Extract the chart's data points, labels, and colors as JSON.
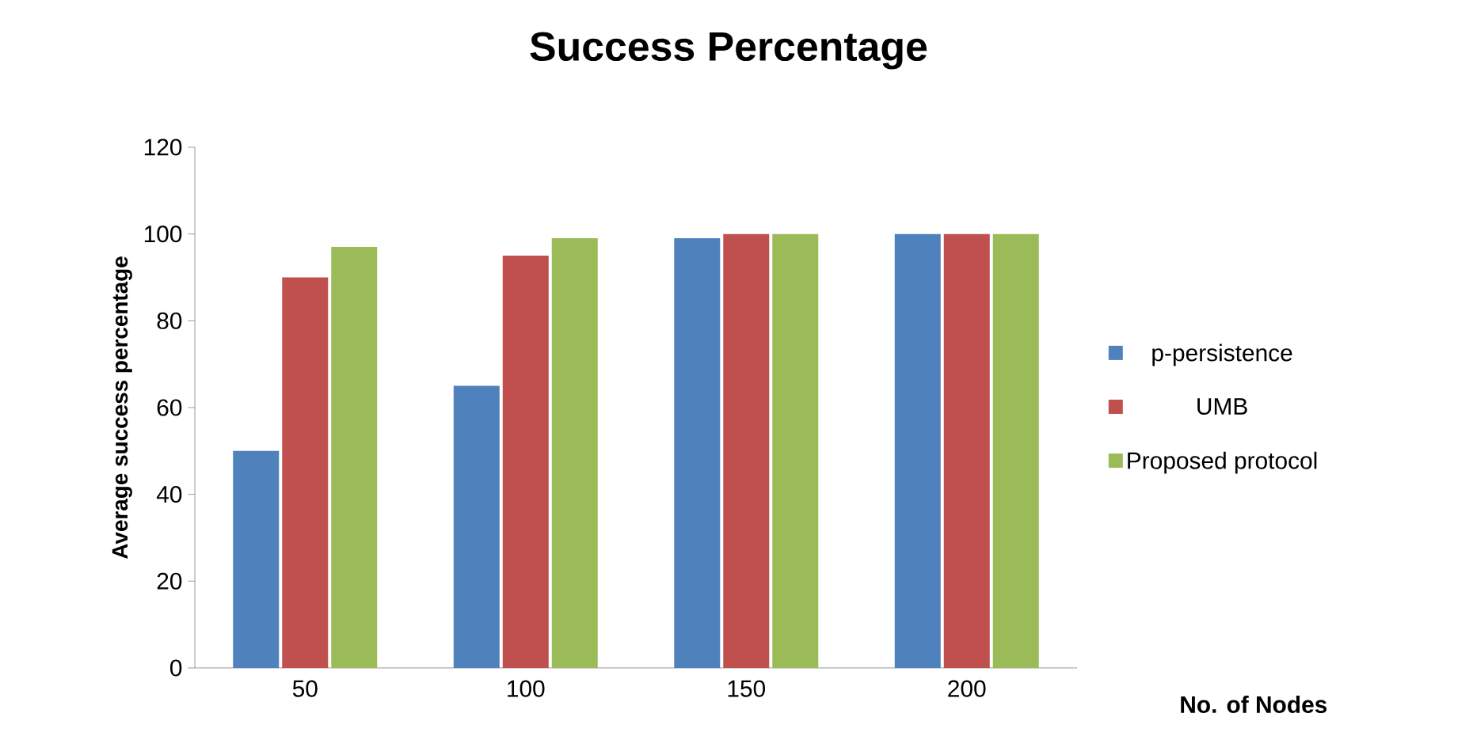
{
  "chart_data": {
    "type": "bar",
    "title": "Success Percentage",
    "xlabel": "No. of Nodes",
    "ylabel": "Average success  percentage",
    "categories": [
      "50",
      "100",
      "150",
      "200"
    ],
    "series": [
      {
        "name": "p-persistence",
        "color": "#4f81bd",
        "values": [
          50,
          65,
          99,
          100
        ]
      },
      {
        "name": "UMB",
        "color": "#c0504d",
        "values": [
          90,
          95,
          100,
          100
        ]
      },
      {
        "name": "Proposed protocol",
        "color": "#9bbb59",
        "values": [
          97,
          99,
          100,
          100
        ]
      }
    ],
    "ylim": [
      0,
      120
    ],
    "yticks": [
      0,
      20,
      40,
      60,
      80,
      100,
      120
    ],
    "grid": false,
    "legend": "right"
  }
}
